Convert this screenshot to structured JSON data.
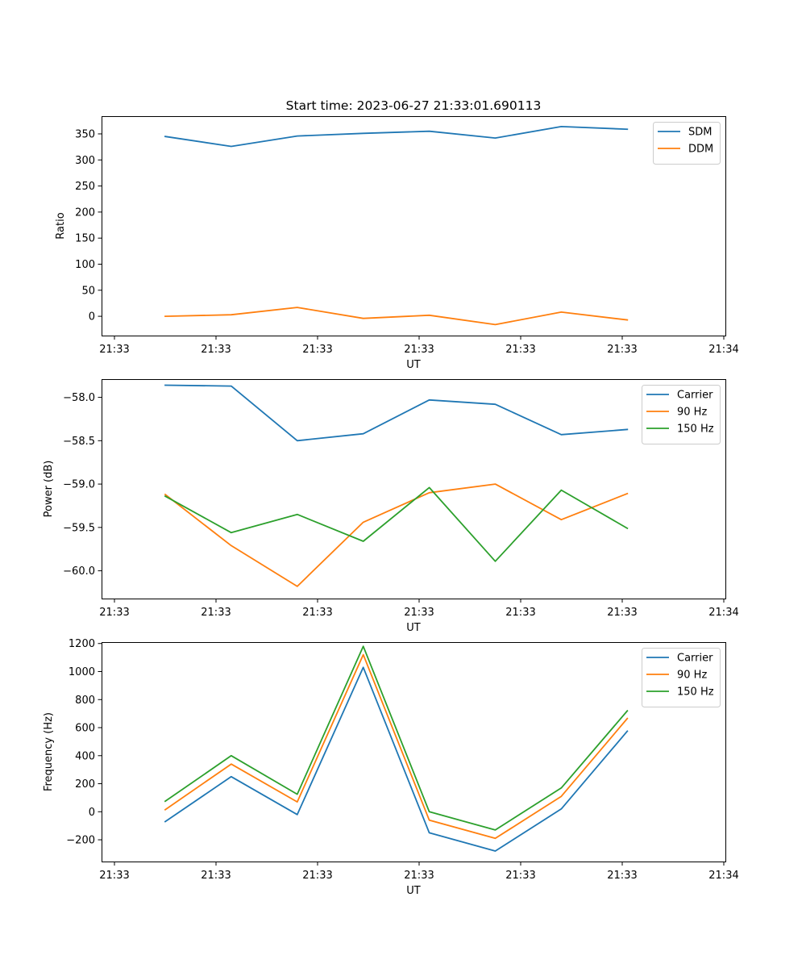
{
  "figure_title": "Start time: 2023-06-27 21:33:01.690113",
  "colors": {
    "blue": "#1f77b4",
    "orange": "#ff7f0e",
    "green": "#2ca02c"
  },
  "chart_data": [
    {
      "type": "line",
      "title": "Start time: 2023-06-27 21:33:01.690113",
      "xlabel": "UT",
      "ylabel": "Ratio",
      "x_tick_labels": [
        "21:33",
        "21:33",
        "21:33",
        "21:33",
        "21:33",
        "21:33",
        "21:34"
      ],
      "xlim": [
        0,
        6
      ],
      "x": [
        0.5,
        1.15,
        1.8,
        2.45,
        3.1,
        3.75,
        4.4,
        5.05
      ],
      "ylim": [
        -37,
        384
      ],
      "yticks": [
        0,
        50,
        100,
        150,
        200,
        250,
        300,
        350
      ],
      "legend_position": "upper right",
      "grid": false,
      "series": [
        {
          "name": "SDM",
          "color": "#1f77b4",
          "values": [
            345,
            326,
            346,
            351,
            355,
            342,
            364,
            359
          ]
        },
        {
          "name": "DDM",
          "color": "#ff7f0e",
          "values": [
            0,
            3,
            17,
            -4,
            2,
            -16,
            8,
            -7
          ]
        }
      ]
    },
    {
      "type": "line",
      "title": "",
      "xlabel": "UT",
      "ylabel": "Power (dB)",
      "x_tick_labels": [
        "21:33",
        "21:33",
        "21:33",
        "21:33",
        "21:33",
        "21:33",
        "21:34"
      ],
      "xlim": [
        0,
        6
      ],
      "x": [
        0.5,
        1.15,
        1.8,
        2.45,
        3.1,
        3.75,
        4.4,
        5.05
      ],
      "ylim": [
        -60.32,
        -57.79
      ],
      "yticks": [
        -60.0,
        -59.5,
        -59.0,
        -58.5,
        -58.0
      ],
      "yticks_labels": [
        "−60.0",
        "−59.5",
        "−59.0",
        "−58.5",
        "−58.0"
      ],
      "legend_position": "upper right",
      "grid": false,
      "series": [
        {
          "name": "Carrier",
          "color": "#1f77b4",
          "values": [
            -57.86,
            -57.87,
            -58.5,
            -58.42,
            -58.03,
            -58.08,
            -58.43,
            -58.37
          ]
        },
        {
          "name": "90 Hz",
          "color": "#ff7f0e",
          "values": [
            -59.12,
            -59.71,
            -60.18,
            -59.44,
            -59.1,
            -59.0,
            -59.41,
            -59.11
          ]
        },
        {
          "name": "150 Hz",
          "color": "#2ca02c",
          "values": [
            -59.14,
            -59.56,
            -59.35,
            -59.66,
            -59.04,
            -59.89,
            -59.07,
            -59.51
          ]
        }
      ]
    },
    {
      "type": "line",
      "title": "",
      "xlabel": "UT",
      "ylabel": "Frequency (Hz)",
      "x_tick_labels": [
        "21:33",
        "21:33",
        "21:33",
        "21:33",
        "21:33",
        "21:33",
        "21:34"
      ],
      "xlim": [
        0,
        6
      ],
      "x": [
        0.5,
        1.15,
        1.8,
        2.45,
        3.1,
        3.75,
        4.4,
        5.05
      ],
      "ylim": [
        -355,
        1210
      ],
      "yticks": [
        -200,
        0,
        200,
        400,
        600,
        800,
        1000,
        1200
      ],
      "yticks_labels": [
        "−200",
        "0",
        "200",
        "400",
        "600",
        "800",
        "1000",
        "1200"
      ],
      "legend_position": "upper right",
      "grid": false,
      "series": [
        {
          "name": "Carrier",
          "color": "#1f77b4",
          "values": [
            -70,
            250,
            -20,
            1030,
            -150,
            -280,
            20,
            575
          ]
        },
        {
          "name": "90 Hz",
          "color": "#ff7f0e",
          "values": [
            15,
            340,
            70,
            1120,
            -60,
            -190,
            110,
            665
          ]
        },
        {
          "name": "150 Hz",
          "color": "#2ca02c",
          "values": [
            75,
            400,
            125,
            1180,
            0,
            -130,
            170,
            720
          ]
        }
      ]
    }
  ]
}
